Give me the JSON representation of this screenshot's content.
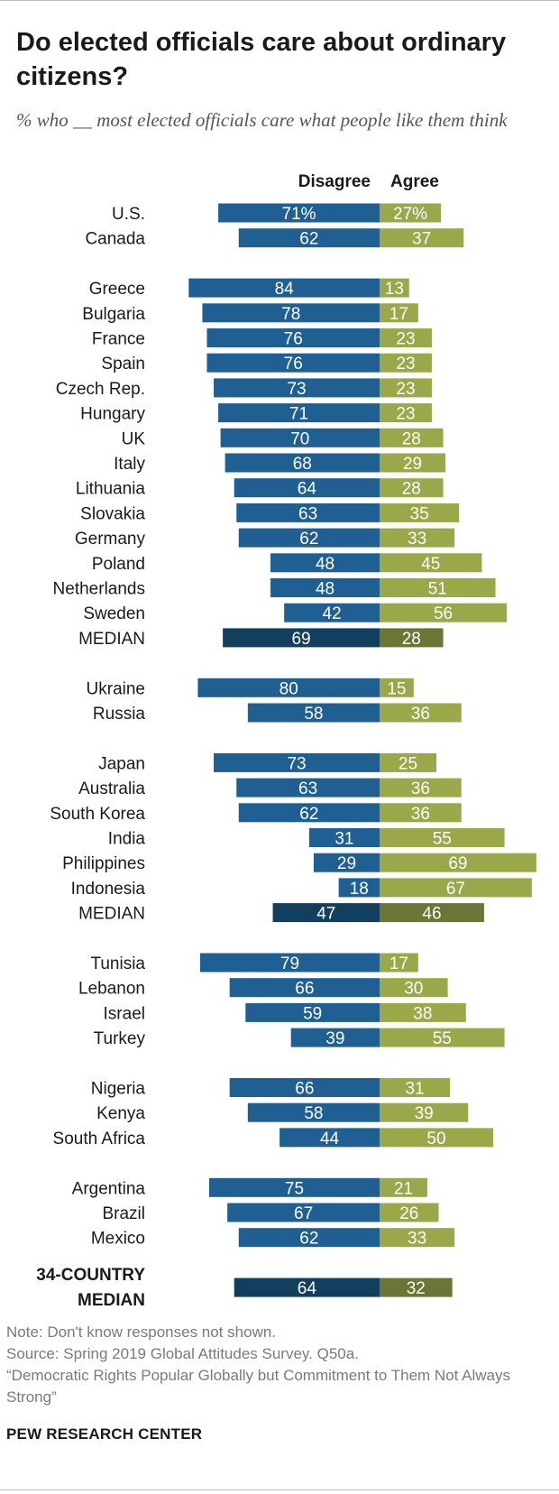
{
  "header": {
    "title": "Do elected officials care about ordinary citizens?",
    "subtitle": "% who __ most elected officials care what people like them think"
  },
  "footer": {
    "note": "Note: Don't know responses not shown.",
    "source": "Source: Spring 2019 Global Attitudes Survey. Q50a.",
    "publication": "“Democratic Rights Popular Globally but Commitment to Them Not Always Strong”",
    "organization": "PEW RESEARCH CENTER"
  },
  "colors": {
    "disagree": "#1f5f91",
    "agree": "#9aa84a",
    "disagree_median": "#133f5e",
    "agree_median": "#6b7535",
    "bar_text": "#ffffff"
  },
  "chart_data": {
    "type": "diverging-bar",
    "title": "Do elected officials care about ordinary citizens?",
    "series_labels": {
      "disagree": "Disagree",
      "agree": "Agree"
    },
    "groups": [
      {
        "rows": [
          {
            "country": "U.S.",
            "disagree": 71,
            "agree": 27,
            "disagree_label": "71%",
            "agree_label": "27%"
          },
          {
            "country": "Canada",
            "disagree": 62,
            "agree": 37
          }
        ]
      },
      {
        "rows": [
          {
            "country": "Greece",
            "disagree": 84,
            "agree": 13
          },
          {
            "country": "Bulgaria",
            "disagree": 78,
            "agree": 17
          },
          {
            "country": "France",
            "disagree": 76,
            "agree": 23
          },
          {
            "country": "Spain",
            "disagree": 76,
            "agree": 23
          },
          {
            "country": "Czech Rep.",
            "disagree": 73,
            "agree": 23
          },
          {
            "country": "Hungary",
            "disagree": 71,
            "agree": 23
          },
          {
            "country": "UK",
            "disagree": 70,
            "agree": 28
          },
          {
            "country": "Italy",
            "disagree": 68,
            "agree": 29
          },
          {
            "country": "Lithuania",
            "disagree": 64,
            "agree": 28
          },
          {
            "country": "Slovakia",
            "disagree": 63,
            "agree": 35
          },
          {
            "country": "Germany",
            "disagree": 62,
            "agree": 33
          },
          {
            "country": "Poland",
            "disagree": 48,
            "agree": 45
          },
          {
            "country": "Netherlands",
            "disagree": 48,
            "agree": 51
          },
          {
            "country": "Sweden",
            "disagree": 42,
            "agree": 56
          },
          {
            "country": "MEDIAN",
            "disagree": 69,
            "agree": 28,
            "median": true
          }
        ]
      },
      {
        "rows": [
          {
            "country": "Ukraine",
            "disagree": 80,
            "agree": 15
          },
          {
            "country": "Russia",
            "disagree": 58,
            "agree": 36
          }
        ]
      },
      {
        "rows": [
          {
            "country": "Japan",
            "disagree": 73,
            "agree": 25
          },
          {
            "country": "Australia",
            "disagree": 63,
            "agree": 36
          },
          {
            "country": "South Korea",
            "disagree": 62,
            "agree": 36
          },
          {
            "country": "India",
            "disagree": 31,
            "agree": 55
          },
          {
            "country": "Philippines",
            "disagree": 29,
            "agree": 69
          },
          {
            "country": "Indonesia",
            "disagree": 18,
            "agree": 67
          },
          {
            "country": "MEDIAN",
            "disagree": 47,
            "agree": 46,
            "median": true
          }
        ]
      },
      {
        "rows": [
          {
            "country": "Tunisia",
            "disagree": 79,
            "agree": 17
          },
          {
            "country": "Lebanon",
            "disagree": 66,
            "agree": 30
          },
          {
            "country": "Israel",
            "disagree": 59,
            "agree": 38
          },
          {
            "country": "Turkey",
            "disagree": 39,
            "agree": 55
          }
        ]
      },
      {
        "rows": [
          {
            "country": "Nigeria",
            "disagree": 66,
            "agree": 31
          },
          {
            "country": "Kenya",
            "disagree": 58,
            "agree": 39
          },
          {
            "country": "South Africa",
            "disagree": 44,
            "agree": 50
          }
        ]
      },
      {
        "rows": [
          {
            "country": "Argentina",
            "disagree": 75,
            "agree": 21
          },
          {
            "country": "Brazil",
            "disagree": 67,
            "agree": 26
          },
          {
            "country": "Mexico",
            "disagree": 62,
            "agree": 33
          }
        ]
      },
      {
        "rows": [
          {
            "country": "34-COUNTRY MEDIAN",
            "label_lines": [
              "34-COUNTRY",
              "MEDIAN"
            ],
            "disagree": 64,
            "agree": 32,
            "median": true,
            "overall": true
          }
        ]
      }
    ]
  }
}
